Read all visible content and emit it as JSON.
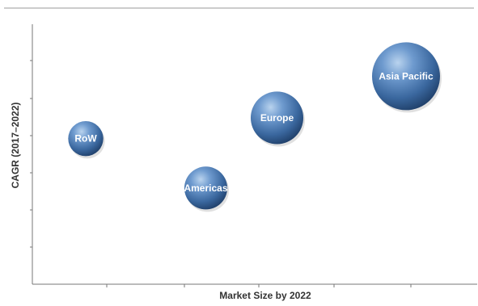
{
  "chart_data": {
    "type": "bubble",
    "title": "",
    "xlabel": "Market Size by 2022",
    "ylabel": "CAGR (2017–2022)",
    "xlim": [
      0,
      100
    ],
    "ylim": [
      0,
      100
    ],
    "grid": false,
    "ticks_labeled": false,
    "bubble_color": "#3f6fa6",
    "label_color": "#ffffff",
    "points": [
      {
        "label": "RoW",
        "x": 12,
        "y": 56,
        "size": 12
      },
      {
        "label": "Americas",
        "x": 39,
        "y": 37,
        "size": 18
      },
      {
        "label": "Europe",
        "x": 55,
        "y": 64,
        "size": 27
      },
      {
        "label": "Asia Pacific",
        "x": 84,
        "y": 80,
        "size": 45
      }
    ]
  }
}
